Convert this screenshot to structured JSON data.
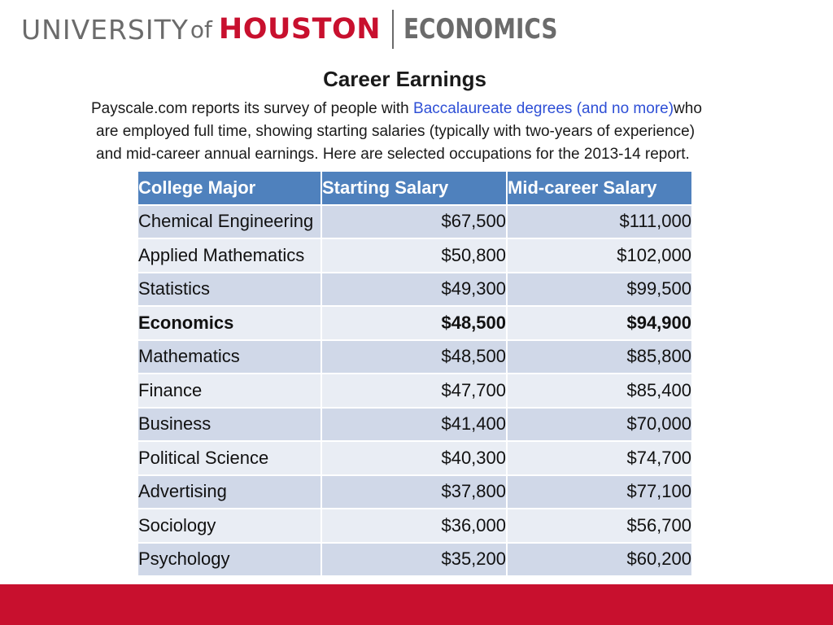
{
  "header": {
    "logo_university": "UNIVERSITY",
    "logo_of": "of",
    "logo_houston": "HOUSTON",
    "logo_department": "ECONOMICS"
  },
  "title": "Career Earnings",
  "intro": {
    "line1_before": "Payscale.com reports its survey of people with ",
    "line1_highlight": "Baccalaureate degrees (and no more)",
    "line1_after": "who",
    "line2": "are employed full time, showing starting salaries (typically with two-years of experience)",
    "line3": "and mid-career annual earnings.  Here are selected occupations for the 2013-14 report."
  },
  "table": {
    "headers": [
      "College Major",
      "Starting Salary",
      "Mid-career Salary"
    ],
    "rows": [
      {
        "major": "Chemical Engineering",
        "start": "$67,500",
        "mid": "$111,000",
        "bold": false
      },
      {
        "major": "Applied Mathematics",
        "start": "$50,800",
        "mid": "$102,000",
        "bold": false
      },
      {
        "major": "Statistics",
        "start": "$49,300",
        "mid": "$99,500",
        "bold": false
      },
      {
        "major": "Economics",
        "start": "$48,500",
        "mid": "$94,900",
        "bold": true
      },
      {
        "major": "Mathematics",
        "start": "$48,500",
        "mid": "$85,800",
        "bold": false
      },
      {
        "major": "Finance",
        "start": "$47,700",
        "mid": "$85,400",
        "bold": false
      },
      {
        "major": "Business",
        "start": "$41,400",
        "mid": "$70,000",
        "bold": false
      },
      {
        "major": "Political Science",
        "start": "$40,300",
        "mid": "$74,700",
        "bold": false
      },
      {
        "major": "Advertising",
        "start": "$37,800",
        "mid": "$77,100",
        "bold": false
      },
      {
        "major": "Sociology",
        "start": "$36,000",
        "mid": "$56,700",
        "bold": false
      },
      {
        "major": "Psychology",
        "start": "$35,200",
        "mid": "$60,200",
        "bold": false
      }
    ]
  },
  "colors": {
    "brand_red": "#c8102e",
    "logo_gray": "#6b6b6b",
    "header_blue": "#4f81bd",
    "highlight_blue": "#2e4fd6"
  }
}
